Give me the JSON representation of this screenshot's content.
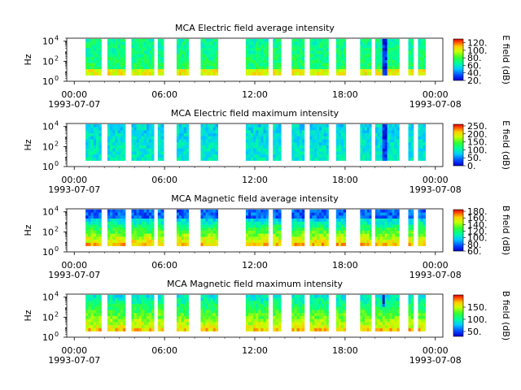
{
  "chart_data": [
    {
      "type": "heatmap",
      "title": "MCA  Electric field average intensity",
      "ylabel": "Hz",
      "y_ticks": [
        {
          "base": "10",
          "exp": "0"
        },
        {
          "base": "10",
          "exp": "2"
        },
        {
          "base": "10",
          "exp": "4"
        }
      ],
      "y_scale": "log",
      "ylim": [
        1,
        20000
      ],
      "xlim": [
        -0.5,
        24.5
      ],
      "x_ticks": [
        {
          "hour": 0,
          "label": "00:00",
          "date": "1993-07-07"
        },
        {
          "hour": 6,
          "label": "06:00",
          "date": ""
        },
        {
          "hour": 12,
          "label": "12:00",
          "date": ""
        },
        {
          "hour": 18,
          "label": "18:00",
          "date": ""
        },
        {
          "hour": 24,
          "label": "00:00",
          "date": "1993-07-08"
        }
      ],
      "colorbar": {
        "label": "E field (dB)",
        "range": [
          20,
          130
        ],
        "ticks": [
          "20.",
          "40.",
          "60.",
          "80.",
          "100.",
          "120."
        ]
      },
      "data_intervals_hours": [
        [
          0.75,
          1.8
        ],
        [
          2.2,
          3.4
        ],
        [
          3.8,
          5.3
        ],
        [
          5.55,
          5.95
        ],
        [
          6.8,
          7.6
        ],
        [
          8.4,
          9.55
        ],
        [
          11.4,
          12.9
        ],
        [
          13.2,
          13.75
        ],
        [
          14.45,
          15.3
        ],
        [
          15.65,
          16.9
        ],
        [
          17.4,
          18.05
        ],
        [
          19.0,
          19.75
        ],
        [
          20.0,
          21.6
        ],
        [
          22.2,
          22.55
        ],
        [
          22.85,
          23.35
        ]
      ],
      "description_note": ""
    },
    {
      "type": "heatmap",
      "title": "MCA  Electric field maximum intensity",
      "ylabel": "Hz",
      "y_ticks": [
        {
          "base": "10",
          "exp": "0"
        },
        {
          "base": "10",
          "exp": "2"
        },
        {
          "base": "10",
          "exp": "4"
        }
      ],
      "y_scale": "log",
      "ylim": [
        1,
        20000
      ],
      "xlim": [
        -0.5,
        24.5
      ],
      "x_ticks": [
        {
          "hour": 0,
          "label": "00:00",
          "date": "1993-07-07"
        },
        {
          "hour": 6,
          "label": "06:00",
          "date": ""
        },
        {
          "hour": 12,
          "label": "12:00",
          "date": ""
        },
        {
          "hour": 18,
          "label": "18:00",
          "date": ""
        },
        {
          "hour": 24,
          "label": "00:00",
          "date": "1993-07-08"
        }
      ],
      "colorbar": {
        "label": "E field (dB)",
        "range": [
          0,
          260
        ],
        "ticks": [
          "0.",
          "50.",
          "100.",
          "150.",
          "200.",
          "250."
        ]
      },
      "data_intervals_hours": [
        [
          0.75,
          1.8
        ],
        [
          2.2,
          3.4
        ],
        [
          3.8,
          5.3
        ],
        [
          5.55,
          5.95
        ],
        [
          6.8,
          7.6
        ],
        [
          8.4,
          9.55
        ],
        [
          11.4,
          12.9
        ],
        [
          13.2,
          13.75
        ],
        [
          14.45,
          15.3
        ],
        [
          15.65,
          16.9
        ],
        [
          17.4,
          18.05
        ],
        [
          19.0,
          19.75
        ],
        [
          20.0,
          21.6
        ],
        [
          22.2,
          22.55
        ],
        [
          22.85,
          23.35
        ]
      ],
      "description_note": ""
    },
    {
      "type": "heatmap",
      "title": "MCA  Magnetic field average intensity",
      "ylabel": "Hz",
      "y_ticks": [
        {
          "base": "10",
          "exp": "0"
        },
        {
          "base": "10",
          "exp": "2"
        },
        {
          "base": "10",
          "exp": "4"
        }
      ],
      "y_scale": "log",
      "ylim": [
        1,
        20000
      ],
      "xlim": [
        -0.5,
        24.5
      ],
      "x_ticks": [
        {
          "hour": 0,
          "label": "00:00",
          "date": "1993-07-07"
        },
        {
          "hour": 6,
          "label": "06:00",
          "date": ""
        },
        {
          "hour": 12,
          "label": "12:00",
          "date": ""
        },
        {
          "hour": 18,
          "label": "18:00",
          "date": ""
        },
        {
          "hour": 24,
          "label": "00:00",
          "date": "1993-07-08"
        }
      ],
      "colorbar": {
        "label": "B field (dB)",
        "range": [
          60,
          185
        ],
        "ticks": [
          "60.",
          "80.",
          "100.",
          "120.",
          "140.",
          "160.",
          "180."
        ]
      },
      "data_intervals_hours": [
        [
          0.75,
          1.8
        ],
        [
          2.2,
          3.4
        ],
        [
          3.8,
          5.3
        ],
        [
          5.55,
          5.95
        ],
        [
          6.8,
          7.6
        ],
        [
          8.4,
          9.55
        ],
        [
          11.4,
          12.9
        ],
        [
          13.2,
          13.75
        ],
        [
          14.45,
          15.3
        ],
        [
          15.65,
          16.9
        ],
        [
          17.4,
          18.05
        ],
        [
          19.0,
          19.75
        ],
        [
          20.0,
          21.6
        ],
        [
          22.2,
          22.55
        ],
        [
          22.85,
          23.35
        ]
      ],
      "description_note": ""
    },
    {
      "type": "heatmap",
      "title": "MCA  Magnetic field maximum intensity",
      "ylabel": "Hz",
      "y_ticks": [
        {
          "base": "10",
          "exp": "0"
        },
        {
          "base": "10",
          "exp": "2"
        },
        {
          "base": "10",
          "exp": "4"
        }
      ],
      "y_scale": "log",
      "ylim": [
        1,
        20000
      ],
      "xlim": [
        -0.5,
        24.5
      ],
      "x_ticks": [
        {
          "hour": 0,
          "label": "00:00",
          "date": "1993-07-07"
        },
        {
          "hour": 6,
          "label": "06:00",
          "date": ""
        },
        {
          "hour": 12,
          "label": "12:00",
          "date": ""
        },
        {
          "hour": 18,
          "label": "18:00",
          "date": ""
        },
        {
          "hour": 24,
          "label": "00:00",
          "date": "1993-07-08"
        }
      ],
      "colorbar": {
        "label": "B field (dB)",
        "range": [
          30,
          200
        ],
        "ticks": [
          "50.",
          "100.",
          "150."
        ]
      },
      "data_intervals_hours": [
        [
          0.75,
          1.8
        ],
        [
          2.2,
          3.4
        ],
        [
          3.8,
          5.3
        ],
        [
          5.55,
          5.95
        ],
        [
          6.8,
          7.6
        ],
        [
          8.4,
          9.55
        ],
        [
          11.4,
          12.9
        ],
        [
          13.2,
          13.75
        ],
        [
          14.45,
          15.3
        ],
        [
          15.65,
          16.9
        ],
        [
          17.4,
          18.05
        ],
        [
          19.0,
          19.75
        ],
        [
          20.0,
          21.6
        ],
        [
          22.2,
          22.55
        ],
        [
          22.85,
          23.35
        ]
      ],
      "description_note": ""
    }
  ]
}
